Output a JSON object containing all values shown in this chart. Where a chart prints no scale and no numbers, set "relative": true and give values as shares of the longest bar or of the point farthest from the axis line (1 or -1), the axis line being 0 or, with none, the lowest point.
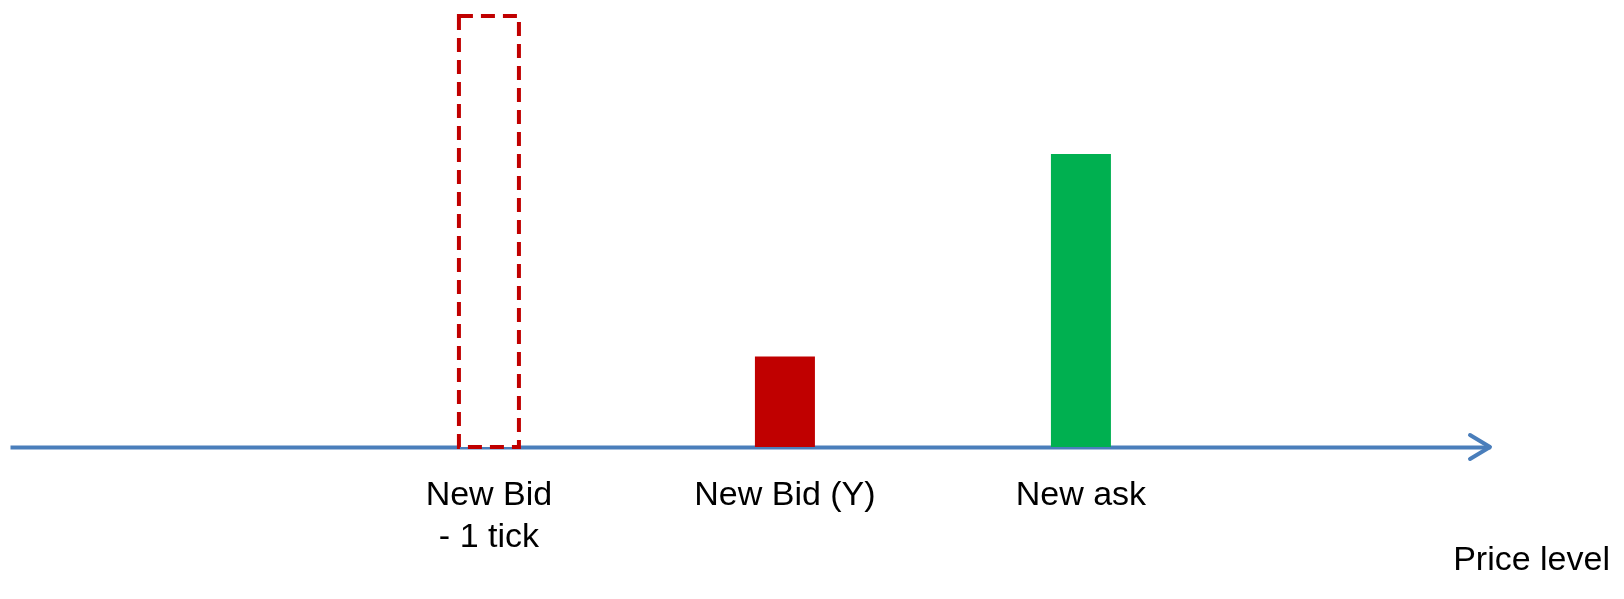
{
  "chart_data": {
    "type": "bar",
    "relative": true,
    "annotations": [
      "Price level"
    ],
    "categories": [
      "New Bid\n- 1 tick",
      "New Bid (Y)",
      "New ask"
    ],
    "series": [
      {
        "color": "#c00000",
        "line_style": "dashed",
        "values": [
          1,
          null,
          null
        ]
      },
      {
        "color": "#c00000",
        "values": [
          null,
          0.21,
          null
        ]
      },
      {
        "color": "#00b050",
        "values": [
          null,
          null,
          0.68
        ]
      }
    ]
  }
}
